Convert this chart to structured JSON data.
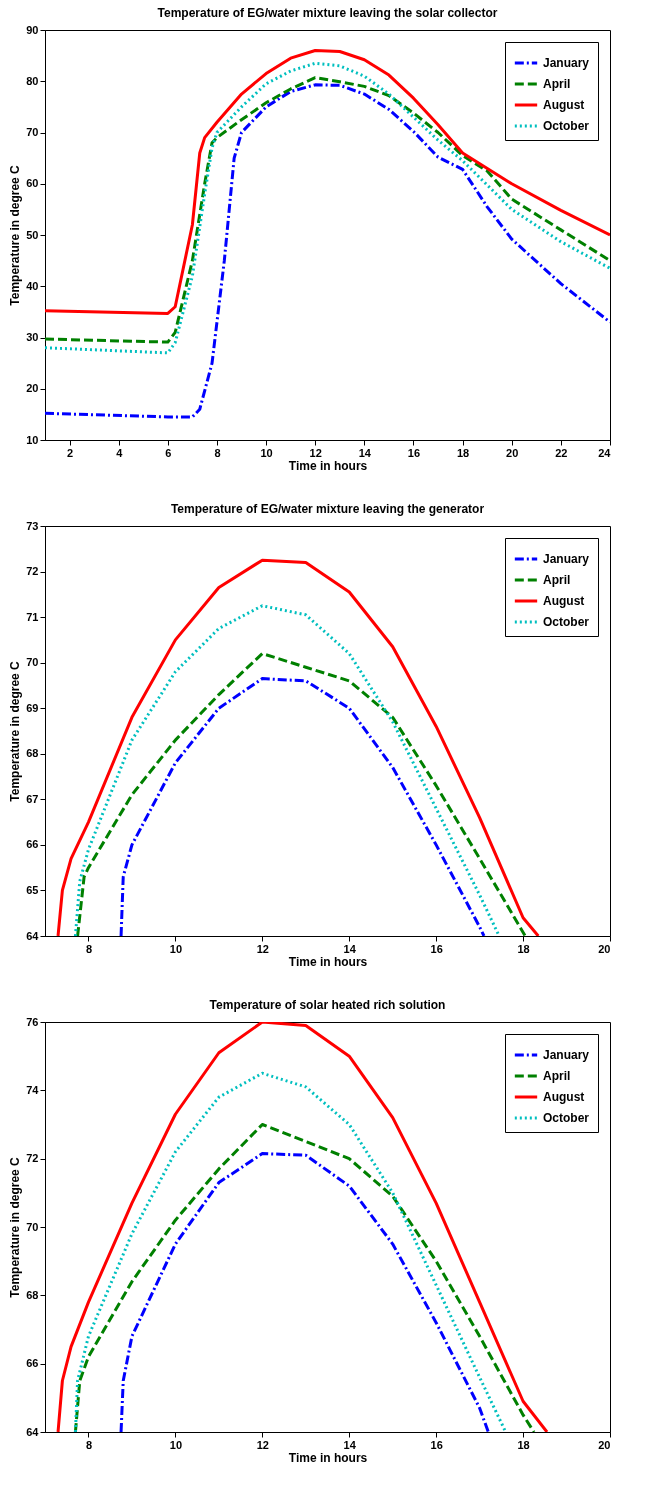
{
  "chart_data": [
    {
      "type": "line",
      "title": "Temperature of EG/water mixture leaving the solar collector",
      "xlabel": "Time in hours",
      "ylabel": "Temperature in degree C",
      "xlim": [
        1,
        24
      ],
      "ylim": [
        10,
        90
      ],
      "xticks": [
        2,
        4,
        6,
        8,
        10,
        12,
        14,
        16,
        18,
        20,
        22,
        24
      ],
      "yticks": [
        10,
        20,
        30,
        40,
        50,
        60,
        70,
        80,
        90
      ],
      "grid": false,
      "legend": "top right",
      "series": [
        {
          "name": "January",
          "color": "#0000ff",
          "line_style": "dashdot",
          "x": [
            1,
            6,
            7,
            7.3,
            7.8,
            8.3,
            8.7,
            9,
            10,
            11,
            12,
            13,
            14,
            15,
            16,
            17,
            18,
            19,
            20,
            22,
            24
          ],
          "values": [
            15.2,
            14.5,
            14.5,
            16,
            25,
            45,
            65,
            70,
            75,
            78,
            79.3,
            79.2,
            77.5,
            74.5,
            70.2,
            65.2,
            62.8,
            55.5,
            49.2,
            40.5,
            33
          ]
        },
        {
          "name": "April",
          "color": "#008000",
          "line_style": "dashed",
          "x": [
            1,
            6,
            6.3,
            7,
            7.5,
            7.8,
            8,
            9,
            10,
            11,
            12,
            13,
            14,
            15,
            16,
            17,
            18,
            19,
            20,
            22,
            24
          ],
          "values": [
            29.7,
            29.1,
            31,
            45,
            60,
            68,
            69,
            72.5,
            75.8,
            78.5,
            80.7,
            79.9,
            79,
            77.2,
            73.8,
            70,
            65.5,
            62.5,
            57,
            51,
            45
          ]
        },
        {
          "name": "August",
          "color": "#ff0000",
          "line_style": "solid",
          "x": [
            1,
            6,
            6.3,
            7,
            7.3,
            7.5,
            8,
            9,
            10,
            11,
            12,
            13,
            14,
            15,
            16,
            17,
            18,
            20,
            22,
            24
          ],
          "values": [
            35.2,
            34.7,
            36,
            52,
            66,
            69,
            72,
            77.5,
            81.5,
            84.5,
            86,
            85.8,
            84.2,
            81.2,
            76.7,
            71.5,
            66,
            60,
            54.8,
            50
          ]
        },
        {
          "name": "October",
          "color": "#00bfbf",
          "line_style": "dotted",
          "x": [
            1,
            6,
            6.3,
            7,
            7.5,
            7.8,
            8,
            9,
            10,
            11,
            12,
            13,
            14,
            15,
            16,
            17,
            18,
            20,
            22,
            24
          ],
          "values": [
            28,
            27,
            29,
            42,
            58,
            67,
            70,
            75,
            79.5,
            82,
            83.5,
            83,
            81,
            77.5,
            73,
            68.5,
            64.5,
            55,
            48.7,
            43.5
          ]
        }
      ]
    },
    {
      "type": "line",
      "title": "Temperature of EG/water mixture leaving the generator",
      "xlabel": "Time in hours",
      "ylabel": "Temperature in degree C",
      "xlim": [
        7,
        20
      ],
      "ylim": [
        64,
        73
      ],
      "xticks": [
        8,
        10,
        12,
        14,
        16,
        18,
        20
      ],
      "yticks": [
        64,
        65,
        66,
        67,
        68,
        69,
        70,
        71,
        72,
        73
      ],
      "grid": false,
      "legend": "top right",
      "series": [
        {
          "name": "January",
          "color": "#0000ff",
          "line_style": "dashdot",
          "x": [
            8.75,
            8.8,
            9,
            10,
            11,
            12,
            13,
            14,
            15,
            16,
            17,
            17.1
          ],
          "values": [
            64,
            65.3,
            66,
            67.8,
            69,
            69.65,
            69.6,
            69,
            67.7,
            66,
            64.2,
            64
          ]
        },
        {
          "name": "April",
          "color": "#008000",
          "line_style": "dashed",
          "x": [
            7.75,
            7.9,
            8,
            9,
            10,
            11,
            12,
            13,
            14,
            15,
            16,
            17,
            18.05
          ],
          "values": [
            64,
            65.3,
            65.5,
            67.1,
            68.3,
            69.3,
            70.2,
            69.9,
            69.6,
            68.8,
            67.3,
            65.7,
            64
          ]
        },
        {
          "name": "August",
          "color": "#ff0000",
          "line_style": "solid",
          "x": [
            7.3,
            7.4,
            7.6,
            8,
            9,
            10,
            11,
            12,
            13,
            14,
            15,
            16,
            17,
            18,
            18.35
          ],
          "values": [
            64,
            65,
            65.7,
            66.5,
            68.8,
            70.5,
            71.65,
            72.25,
            72.2,
            71.55,
            70.35,
            68.6,
            66.6,
            64.4,
            64
          ]
        },
        {
          "name": "October",
          "color": "#00bfbf",
          "line_style": "dotted",
          "x": [
            7.7,
            7.8,
            8,
            9,
            10,
            11,
            12,
            13,
            14,
            15,
            16,
            17,
            17.45
          ],
          "values": [
            64,
            65.2,
            65.9,
            68.3,
            69.8,
            70.75,
            71.25,
            71.05,
            70.2,
            68.7,
            66.8,
            64.9,
            64
          ]
        }
      ]
    },
    {
      "type": "line",
      "title": "Temperature of solar heated rich solution",
      "xlabel": "Time in hours",
      "ylabel": "Temperature in degree C",
      "xlim": [
        7,
        20
      ],
      "ylim": [
        64,
        76
      ],
      "xticks": [
        8,
        10,
        12,
        14,
        16,
        18,
        20
      ],
      "yticks": [
        64,
        66,
        68,
        70,
        72,
        74,
        76
      ],
      "grid": false,
      "legend": "top right",
      "series": [
        {
          "name": "January",
          "color": "#0000ff",
          "line_style": "dashdot",
          "x": [
            8.75,
            8.8,
            9,
            10,
            11,
            12,
            13,
            14,
            15,
            16,
            17,
            17.2
          ],
          "values": [
            64,
            65.5,
            66.8,
            69.5,
            71.3,
            72.15,
            72.1,
            71.2,
            69.5,
            67.2,
            64.7,
            64
          ]
        },
        {
          "name": "April",
          "color": "#008000",
          "line_style": "dashed",
          "x": [
            7.7,
            7.8,
            8,
            9,
            10,
            11,
            12,
            13,
            14,
            15,
            16,
            17,
            18,
            18.25
          ],
          "values": [
            64,
            65.5,
            66.2,
            68.4,
            70.2,
            71.7,
            73,
            72.5,
            72,
            70.9,
            69,
            66.8,
            64.5,
            64
          ]
        },
        {
          "name": "August",
          "color": "#ff0000",
          "line_style": "solid",
          "x": [
            7.3,
            7.4,
            7.6,
            8,
            9,
            10,
            11,
            12,
            13,
            14,
            15,
            16,
            17,
            18,
            18.55
          ],
          "values": [
            64,
            65.5,
            66.5,
            67.8,
            70.7,
            73.3,
            75.1,
            76,
            75.9,
            75,
            73.2,
            70.7,
            67.8,
            64.9,
            64
          ]
        },
        {
          "name": "October",
          "color": "#00bfbf",
          "line_style": "dotted",
          "x": [
            7.7,
            7.75,
            8,
            9,
            10,
            11,
            12,
            13,
            14,
            15,
            16,
            17,
            17.6
          ],
          "values": [
            64,
            65.5,
            66.8,
            69.8,
            72.2,
            73.8,
            74.5,
            74.1,
            73,
            71,
            68.3,
            65.6,
            64
          ]
        }
      ]
    }
  ]
}
